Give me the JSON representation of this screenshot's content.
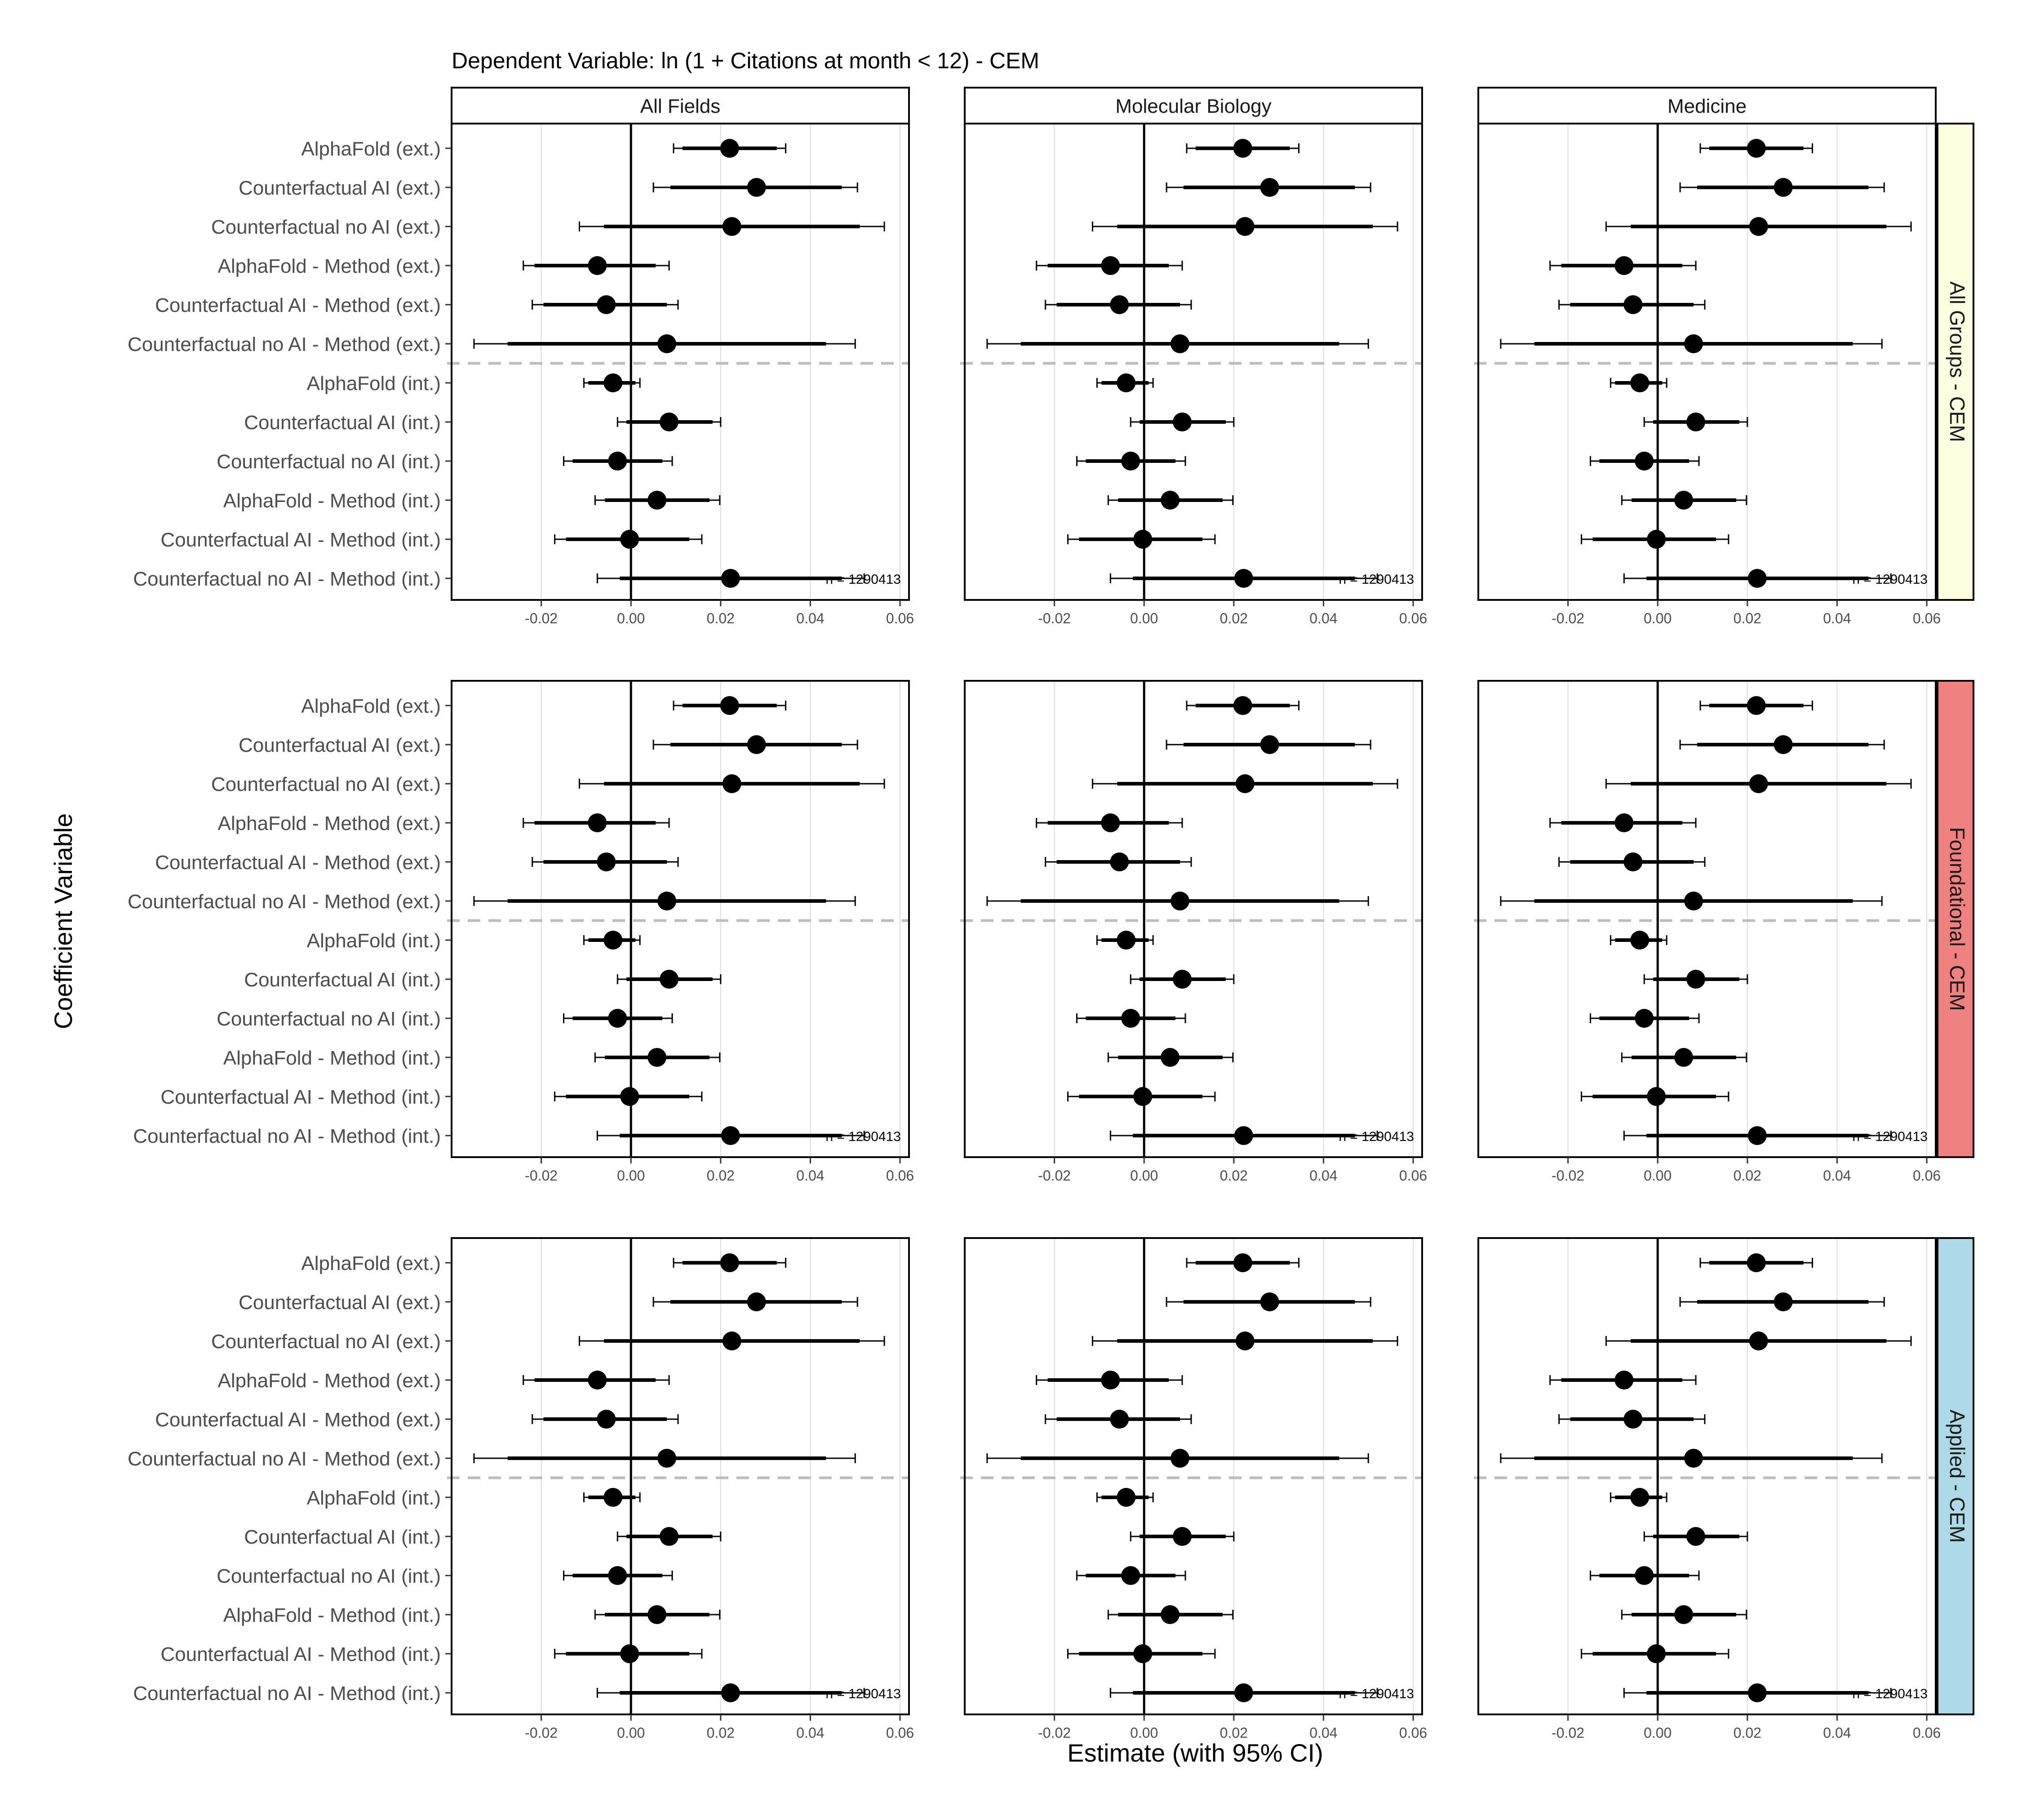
{
  "title": "Dependent Variable: ln (1 + Citations at month < 12)  -  CEM",
  "column_facets": [
    "All Fields",
    "Molecular Biology",
    "Medicine"
  ],
  "row_facets": [
    {
      "label": "All Groups - CEM",
      "color": "#FFFDE1"
    },
    {
      "label": "Foundational - CEM",
      "color": "#F08080"
    },
    {
      "label": "Applied - CEM",
      "color": "#ADD8E6"
    }
  ],
  "xlabel": "Estimate (with 95% CI)",
  "ylabel": "Coefficient Variable",
  "n_label": "n = 1290413",
  "chart_data": {
    "type": "scatter",
    "subtype": "coefficient-plot",
    "xlim": [
      -0.04,
      0.062
    ],
    "x_ticks": [
      "-0.02",
      "0.00",
      "0.02",
      "0.04",
      "0.06"
    ],
    "x_tick_values": [
      -0.02,
      0.0,
      0.02,
      0.04,
      0.06
    ],
    "reference_line_x": 0,
    "group_divider_after_index": 5,
    "grid": "vertical",
    "categories": [
      "AlphaFold (ext.)",
      "Counterfactual AI (ext.)",
      "Counterfactual no AI (ext.)",
      "AlphaFold - Method (ext.)",
      "Counterfactual AI - Method (ext.)",
      "Counterfactual no AI - Method (ext.)",
      "AlphaFold (int.)",
      "Counterfactual AI (int.)",
      "Counterfactual no AI (int.)",
      "AlphaFold - Method (int.)",
      "Counterfactual AI - Method (int.)",
      "Counterfactual no AI - Method (int.)"
    ],
    "estimates": [
      0.022,
      0.028,
      0.0225,
      -0.0075,
      -0.0055,
      0.008,
      -0.004,
      0.0085,
      -0.003,
      0.0058,
      -0.0003,
      0.0222
    ],
    "ci95_low": [
      0.0095,
      0.005,
      -0.0115,
      -0.024,
      -0.022,
      -0.035,
      -0.0105,
      -0.003,
      -0.015,
      -0.008,
      -0.017,
      -0.0075
    ],
    "ci95_high": [
      0.0345,
      0.0505,
      0.0565,
      0.0085,
      0.0105,
      0.05,
      0.002,
      0.02,
      0.0092,
      0.0198,
      0.0158,
      0.052
    ],
    "ci90_low": [
      0.0115,
      0.0088,
      -0.006,
      -0.0215,
      -0.0195,
      -0.0275,
      -0.0095,
      -0.001,
      -0.013,
      -0.0058,
      -0.0145,
      -0.0025
    ],
    "ci90_high": [
      0.0325,
      0.047,
      0.051,
      0.0055,
      0.008,
      0.0435,
      0.001,
      0.0182,
      0.007,
      0.0175,
      0.013,
      0.047
    ]
  }
}
